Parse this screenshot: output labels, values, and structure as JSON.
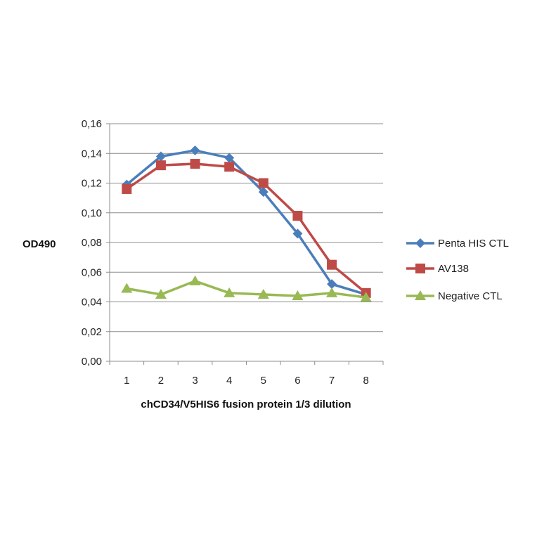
{
  "chart_data": {
    "type": "line",
    "title": "",
    "xlabel": "chCD34/V5HIS6 fusion protein 1/3 dilution",
    "ylabel": "OD490",
    "categories": [
      "1",
      "2",
      "3",
      "4",
      "5",
      "6",
      "7",
      "8"
    ],
    "ylim": [
      0,
      0.16
    ],
    "yticks": [
      0,
      0.02,
      0.04,
      0.06,
      0.08,
      0.1,
      0.12,
      0.14,
      0.16
    ],
    "ytick_labels": [
      "0,00",
      "0,02",
      "0,04",
      "0,06",
      "0,08",
      "0,10",
      "0,12",
      "0,14",
      "0,16"
    ],
    "grid": true,
    "legend_position": "right",
    "series": [
      {
        "name": "Penta HIS CTL",
        "color": "#4a7ebb",
        "marker": "diamond",
        "values": [
          0.119,
          0.138,
          0.142,
          0.137,
          0.114,
          0.086,
          0.052,
          0.045
        ]
      },
      {
        "name": "AV138",
        "color": "#be4b48",
        "marker": "square",
        "values": [
          0.116,
          0.132,
          0.133,
          0.131,
          0.12,
          0.098,
          0.065,
          0.046
        ]
      },
      {
        "name": "Negative CTL",
        "color": "#98b954",
        "marker": "triangle",
        "values": [
          0.049,
          0.045,
          0.054,
          0.046,
          0.045,
          0.044,
          0.046,
          0.043
        ]
      }
    ]
  }
}
